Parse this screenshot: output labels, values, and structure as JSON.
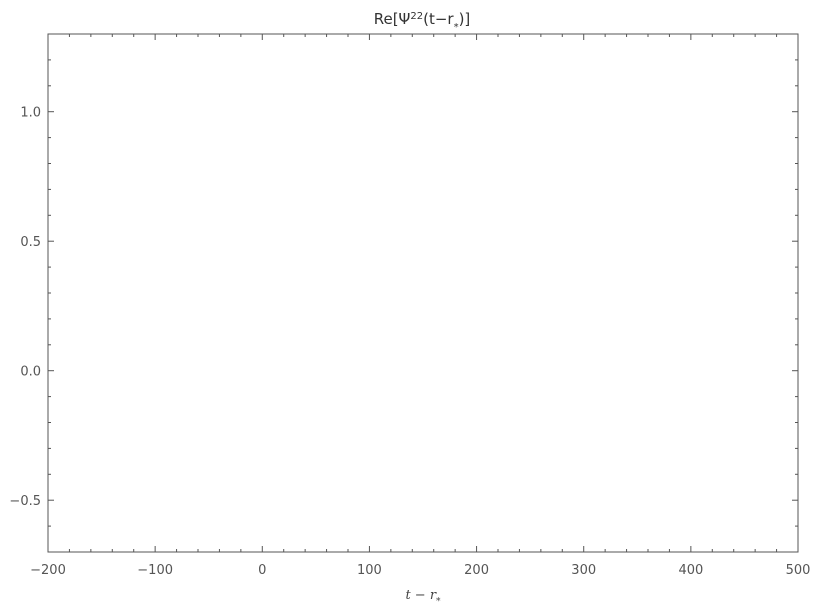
{
  "chart_data": {
    "type": "line",
    "title": {
      "prefix": "Re[Ψ",
      "superscript": "22",
      "middle": "(t−r",
      "subscript": "*",
      "suffix": ")]"
    },
    "xlabel": {
      "main": "t − r",
      "subscript": "*"
    },
    "ylabel": "",
    "xlim": [
      -200,
      500
    ],
    "ylim": [
      -0.7,
      1.3
    ],
    "x_major_ticks": [
      -200,
      -100,
      0,
      100,
      200,
      300,
      400,
      500
    ],
    "x_tick_labels": [
      "−200",
      "−100",
      "0",
      "100",
      "200",
      "300",
      "400",
      "500"
    ],
    "x_minor_step": 20,
    "y_major_ticks": [
      -0.5,
      0.0,
      0.5,
      1.0
    ],
    "y_tick_labels": [
      "−0.5",
      "0.0",
      "0.5",
      "1.0"
    ],
    "y_minor_step": 0.1,
    "grid": false,
    "frame_color": "#555555",
    "series": []
  }
}
